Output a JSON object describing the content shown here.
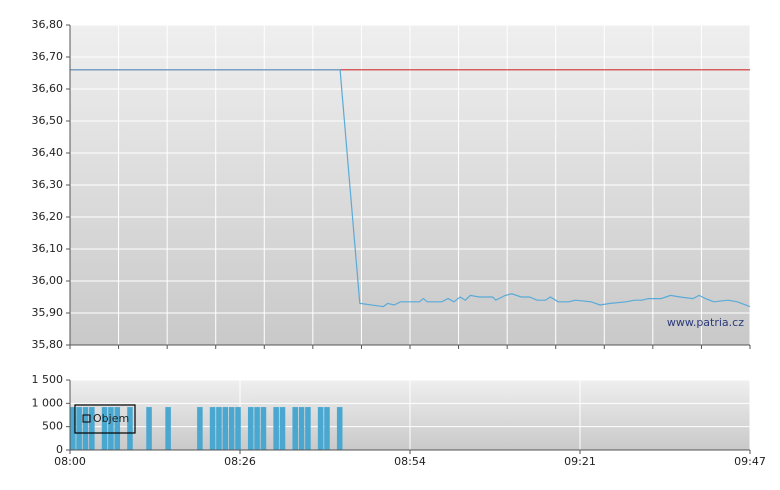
{
  "chart_data": [
    {
      "type": "line",
      "watermark": "www.patria.cz",
      "x": [
        0,
        42.5,
        45.6,
        49.3,
        50.0,
        51.0,
        52.0,
        55.0,
        55.6,
        56.2,
        58.5,
        59.5,
        60.4,
        61.4,
        62.2,
        63.0,
        64.4,
        66.5,
        67.0,
        68.5,
        69.5,
        71.0,
        72.3,
        73.5,
        74.8,
        75.6,
        76.8,
        78.5,
        79.5,
        82.0,
        83.4,
        85.0,
        87.5,
        88.8,
        90.0,
        91.0,
        93.0,
        94.5,
        96.0,
        98.0,
        99.0,
        100.0,
        101.3,
        103.5,
        105.0,
        107.0
      ],
      "values": [
        36.66,
        36.66,
        35.93,
        35.92,
        35.93,
        35.925,
        35.935,
        35.935,
        35.945,
        35.935,
        35.935,
        35.945,
        35.935,
        35.95,
        35.94,
        35.955,
        35.95,
        35.95,
        35.94,
        35.955,
        35.96,
        35.95,
        35.95,
        35.94,
        35.94,
        35.95,
        35.935,
        35.935,
        35.94,
        35.935,
        35.925,
        35.93,
        35.935,
        35.94,
        35.94,
        35.945,
        35.945,
        35.955,
        35.95,
        35.945,
        35.955,
        35.945,
        35.935,
        35.94,
        35.935,
        35.92
      ],
      "color": "#5aaad8",
      "reference_line": {
        "value": 36.66,
        "color": "#d03030"
      },
      "xlim": [
        0,
        107
      ],
      "xgrid": [
        0,
        7.64,
        15.29,
        22.93,
        30.57,
        38.21,
        45.86,
        53.5,
        61.14,
        68.79,
        76.43,
        84.07,
        91.71,
        99.36,
        107
      ],
      "ylim": [
        35.8,
        36.8
      ],
      "yticks": [
        {
          "value": 35.8,
          "label": "35,80"
        },
        {
          "value": 35.9,
          "label": "35,90"
        },
        {
          "value": 36.0,
          "label": "36,00"
        },
        {
          "value": 36.1,
          "label": "36,10"
        },
        {
          "value": 36.2,
          "label": "36,20"
        },
        {
          "value": 36.3,
          "label": "36,30"
        },
        {
          "value": 36.4,
          "label": "36,40"
        },
        {
          "value": 36.5,
          "label": "36,50"
        },
        {
          "value": 36.6,
          "label": "36,60"
        },
        {
          "value": 36.7,
          "label": "36,70"
        },
        {
          "value": 36.8,
          "label": "36,80"
        }
      ],
      "grid": true
    },
    {
      "type": "bar",
      "x": [
        0,
        1,
        2,
        3,
        5,
        6,
        7,
        9,
        12,
        15,
        20,
        22,
        23,
        24,
        25,
        26,
        28,
        29,
        30,
        32,
        33,
        35,
        36,
        37,
        39,
        40,
        42
      ],
      "series": [
        {
          "name": "Objem",
          "color": "#4aa8d0",
          "values": [
            920,
            920,
            920,
            920,
            920,
            920,
            920,
            920,
            920,
            920,
            920,
            920,
            920,
            920,
            920,
            920,
            920,
            920,
            920,
            920,
            920,
            920,
            920,
            920,
            920,
            920,
            920
          ]
        }
      ],
      "legend": "top-left",
      "xlim": [
        0,
        107
      ],
      "xticks": [
        {
          "value": 0,
          "label": "08:00"
        },
        {
          "value": 26.75,
          "label": "08:26"
        },
        {
          "value": 53.5,
          "label": "08:54"
        },
        {
          "value": 80.25,
          "label": "09:21"
        },
        {
          "value": 107,
          "label": "09:47"
        }
      ],
      "ylim": [
        0,
        1500
      ],
      "yticks": [
        0,
        500,
        {
          "value": 1000,
          "label": "1 000"
        },
        {
          "value": 1500,
          "label": "1 500"
        }
      ],
      "grid": true
    }
  ]
}
